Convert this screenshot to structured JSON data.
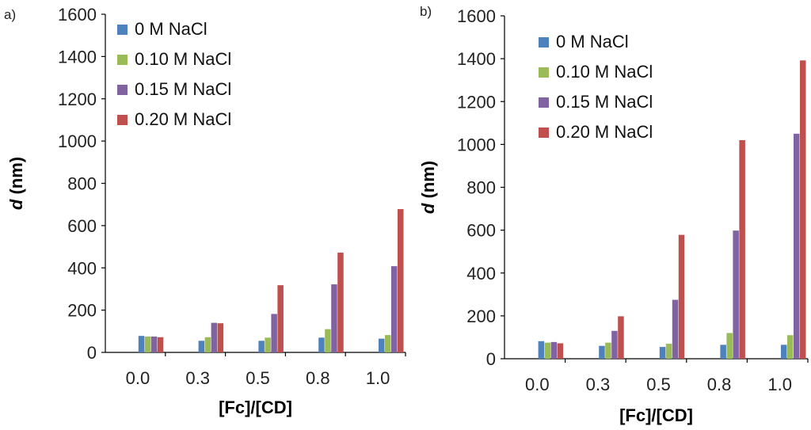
{
  "chart_data": [
    {
      "type": "bar",
      "panel_label": "a)",
      "categories": [
        "0.0",
        "0.3",
        "0.5",
        "0.8",
        "1.0"
      ],
      "series": [
        {
          "name": "0 M NaCl",
          "color": "#4f81bd",
          "values": [
            78,
            55,
            55,
            70,
            65
          ]
        },
        {
          "name": "0.10 M NaCl",
          "color": "#9bbb59",
          "values": [
            75,
            72,
            70,
            110,
            82
          ]
        },
        {
          "name": "0.15 M NaCl",
          "color": "#8064a2",
          "values": [
            75,
            140,
            182,
            322,
            408
          ]
        },
        {
          "name": "0.20 M NaCl",
          "color": "#c0504d",
          "values": [
            72,
            138,
            318,
            472,
            678
          ]
        }
      ],
      "ylim": [
        0,
        1600
      ],
      "yticks": [
        0,
        200,
        400,
        600,
        800,
        1000,
        1200,
        1400,
        1600
      ],
      "ylabel_italic": "d",
      "ylabel_unit": " (nm)",
      "xlabel": "[Fc]/[CD]",
      "legend_position": "top-left",
      "grid": false
    },
    {
      "type": "bar",
      "panel_label": "b)",
      "categories": [
        "0.0",
        "0.3",
        "0.5",
        "0.8",
        "1.0"
      ],
      "series": [
        {
          "name": "0 M NaCl",
          "color": "#4f81bd",
          "values": [
            82,
            60,
            55,
            65,
            65
          ]
        },
        {
          "name": "0.10 M NaCl",
          "color": "#9bbb59",
          "values": [
            75,
            75,
            70,
            120,
            110
          ]
        },
        {
          "name": "0.15 M NaCl",
          "color": "#8064a2",
          "values": [
            78,
            130,
            275,
            598,
            1050
          ]
        },
        {
          "name": "0.20 M NaCl",
          "color": "#c0504d",
          "values": [
            72,
            198,
            578,
            1020,
            1392
          ]
        }
      ],
      "ylim": [
        0,
        1600
      ],
      "yticks": [
        0,
        200,
        400,
        600,
        800,
        1000,
        1200,
        1400,
        1600
      ],
      "ylabel_italic": "d",
      "ylabel_unit": " (nm)",
      "xlabel": "[Fc]/[CD]",
      "legend_position": "top-left",
      "grid": false
    }
  ]
}
